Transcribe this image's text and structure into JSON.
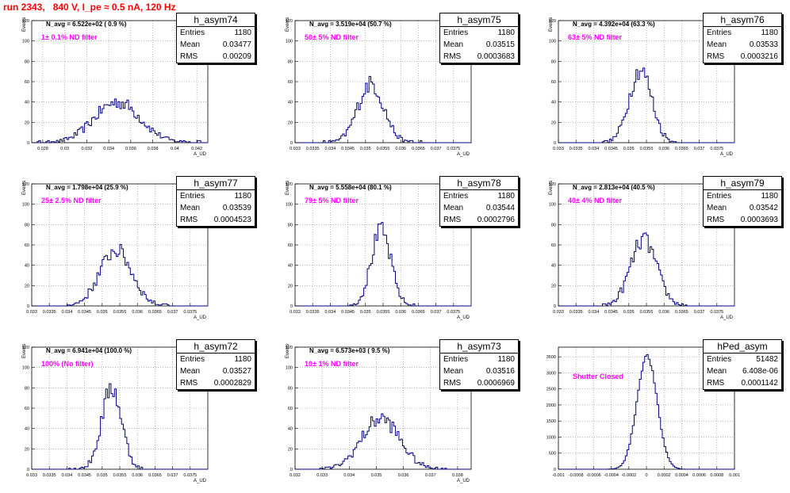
{
  "run_title": "run 2343,   840 V, I_pe ≈ 0.5 nA, 120 Hz",
  "colors": {
    "histogram": "#000080",
    "title": "#ff0000",
    "filter_text": "#ff00ff"
  },
  "stats_labels": {
    "entries": "Entries",
    "mean": "Mean",
    "rms": "RMS"
  },
  "chart_data": [
    {
      "type": "bar",
      "name": "h_asym74",
      "navg": "N_avg = 6.522e+02 ( 0.9 %)",
      "filter": "1± 0.1% ND filter",
      "entries": "1180",
      "mean": "0.03477",
      "rms": "0.00209",
      "xlabel": "A_UD",
      "ylabel": "Events",
      "xlim": [
        0.027,
        0.043
      ],
      "ylim": [
        0,
        120
      ],
      "xticks": [
        "0.028",
        "0.03",
        "0.032",
        "0.034",
        "0.036",
        "0.038",
        "0.04",
        "0.042"
      ],
      "xtick_values": [
        0.028,
        0.03,
        0.032,
        0.034,
        0.036,
        0.038,
        0.04,
        0.042
      ],
      "yticks": [
        0,
        20,
        40,
        60,
        80,
        100,
        120
      ],
      "dist": {
        "mean": 0.03477,
        "sigma": 0.00209,
        "peak": 40
      }
    },
    {
      "type": "bar",
      "name": "h_asym75",
      "navg": "N_avg = 3.519e+04 (50.7 %)",
      "filter": "50± 5% ND filter",
      "entries": "1180",
      "mean": "0.03515",
      "rms": "0.0003683",
      "xlabel": "A_UD",
      "ylabel": "Events",
      "xlim": [
        0.033,
        0.038
      ],
      "ylim": [
        0,
        120
      ],
      "xticks": [
        "0.033",
        "0.0335",
        "0.034",
        "0.0345",
        "0.035",
        "0.0355",
        "0.036",
        "0.0365",
        "0.037",
        "0.0375"
      ],
      "xtick_values": [
        0.033,
        0.0335,
        0.034,
        0.0345,
        0.035,
        0.0355,
        0.036,
        0.0365,
        0.037,
        0.0375
      ],
      "yticks": [
        0,
        20,
        40,
        60,
        80,
        100,
        120
      ],
      "dist": {
        "mean": 0.03515,
        "sigma": 0.0003683,
        "peak": 58
      }
    },
    {
      "type": "bar",
      "name": "h_asym76",
      "navg": "N_avg = 4.392e+04 (63.3 %)",
      "filter": "63± 5% ND filter",
      "entries": "1180",
      "mean": "0.03533",
      "rms": "0.0003216",
      "xlabel": "A_UD",
      "ylabel": "Events",
      "xlim": [
        0.033,
        0.038
      ],
      "ylim": [
        0,
        120
      ],
      "xticks": [
        "0.033",
        "0.0335",
        "0.034",
        "0.0345",
        "0.035",
        "0.0355",
        "0.036",
        "0.0365",
        "0.037",
        "0.0375"
      ],
      "xtick_values": [
        0.033,
        0.0335,
        0.034,
        0.0345,
        0.035,
        0.0355,
        0.036,
        0.0365,
        0.037,
        0.0375
      ],
      "yticks": [
        0,
        20,
        40,
        60,
        80,
        100,
        120
      ],
      "dist": {
        "mean": 0.03533,
        "sigma": 0.0003216,
        "peak": 72
      }
    },
    {
      "type": "bar",
      "name": "h_asym77",
      "navg": "N_avg = 1.798e+04 (25.9 %)",
      "filter": "25± 2.5% ND filter",
      "entries": "1180",
      "mean": "0.03539",
      "rms": "0.0004523",
      "xlabel": "A_UD",
      "ylabel": "Events",
      "xlim": [
        0.033,
        0.038
      ],
      "ylim": [
        0,
        120
      ],
      "xticks": [
        "0.033",
        "0.0335",
        "0.034",
        "0.0345",
        "0.035",
        "0.0355",
        "0.036",
        "0.0365",
        "0.037",
        "0.0375"
      ],
      "xtick_values": [
        0.033,
        0.0335,
        0.034,
        0.0345,
        0.035,
        0.0355,
        0.036,
        0.0365,
        0.037,
        0.0375
      ],
      "yticks": [
        0,
        20,
        40,
        60,
        80,
        100,
        120
      ],
      "dist": {
        "mean": 0.03539,
        "sigma": 0.0004523,
        "peak": 55
      }
    },
    {
      "type": "bar",
      "name": "h_asym78",
      "navg": "N_avg = 5.558e+04 (80.1 %)",
      "filter": "79± 5% ND filter",
      "entries": "1180",
      "mean": "0.03544",
      "rms": "0.0002796",
      "xlabel": "A_UD",
      "ylabel": "Events",
      "xlim": [
        0.033,
        0.038
      ],
      "ylim": [
        0,
        120
      ],
      "xticks": [
        "0.033",
        "0.0335",
        "0.034",
        "0.0345",
        "0.035",
        "0.0355",
        "0.036",
        "0.0365",
        "0.037",
        "0.0375"
      ],
      "xtick_values": [
        0.033,
        0.0335,
        0.034,
        0.0345,
        0.035,
        0.0355,
        0.036,
        0.0365,
        0.037,
        0.0375
      ],
      "yticks": [
        0,
        20,
        40,
        60,
        80,
        100,
        120
      ],
      "dist": {
        "mean": 0.03544,
        "sigma": 0.0002796,
        "peak": 74
      }
    },
    {
      "type": "bar",
      "name": "h_asym79",
      "navg": "N_avg = 2.813e+04 (40.5 %)",
      "filter": "40± 4% ND filter",
      "entries": "1180",
      "mean": "0.03542",
      "rms": "0.0003693",
      "xlabel": "A_UD",
      "ylabel": "Events",
      "xlim": [
        0.033,
        0.038
      ],
      "ylim": [
        0,
        120
      ],
      "xticks": [
        "0.033",
        "0.0335",
        "0.034",
        "0.0345",
        "0.035",
        "0.0355",
        "0.036",
        "0.0365",
        "0.037",
        "0.0375"
      ],
      "xtick_values": [
        0.033,
        0.0335,
        0.034,
        0.0345,
        0.035,
        0.0355,
        0.036,
        0.0365,
        0.037,
        0.0375
      ],
      "yticks": [
        0,
        20,
        40,
        60,
        80,
        100,
        120
      ],
      "dist": {
        "mean": 0.03542,
        "sigma": 0.0003693,
        "peak": 65
      }
    },
    {
      "type": "bar",
      "name": "h_asym72",
      "navg": "N_avg = 6.941e+04 (100.0 %)",
      "filter": "100% (No filter)",
      "entries": "1180",
      "mean": "0.03527",
      "rms": "0.0002829",
      "xlabel": "A_UD",
      "ylabel": "Events",
      "xlim": [
        0.033,
        0.038
      ],
      "ylim": [
        0,
        120
      ],
      "xticks": [
        "0.033",
        "0.0335",
        "0.034",
        "0.0345",
        "0.035",
        "0.0355",
        "0.036",
        "0.0365",
        "0.037",
        "0.0375"
      ],
      "xtick_values": [
        0.033,
        0.0335,
        0.034,
        0.0345,
        0.035,
        0.0355,
        0.036,
        0.0365,
        0.037,
        0.0375
      ],
      "yticks": [
        0,
        20,
        40,
        60,
        80,
        100,
        120
      ],
      "dist": {
        "mean": 0.03527,
        "sigma": 0.0002829,
        "peak": 80
      }
    },
    {
      "type": "bar",
      "name": "h_asym73",
      "navg": "N_avg = 6.573e+03 ( 9.5 %)",
      "filter": "10± 1% ND filter",
      "entries": "1180",
      "mean": "0.03516",
      "rms": "0.0006969",
      "xlabel": "A_UD",
      "ylabel": "Events",
      "xlim": [
        0.032,
        0.0385
      ],
      "ylim": [
        0,
        120
      ],
      "xticks": [
        "0.032",
        "0.033",
        "0.034",
        "0.035",
        "0.036",
        "0.037",
        "0.038"
      ],
      "xtick_values": [
        0.032,
        0.033,
        0.034,
        0.035,
        0.036,
        0.037,
        0.038
      ],
      "yticks": [
        0,
        20,
        40,
        60,
        80,
        100,
        120
      ],
      "dist": {
        "mean": 0.03516,
        "sigma": 0.0006969,
        "peak": 50
      }
    },
    {
      "type": "bar",
      "name": "hPed_asym",
      "navg": "",
      "filter": "Shutter Closed",
      "entries": "51482",
      "mean": "6.408e-06",
      "rms": "0.0001142",
      "xlabel": "",
      "ylabel": "",
      "xlim": [
        -0.001,
        0.001
      ],
      "ylim": [
        0,
        3800
      ],
      "xticks": [
        "-0.001",
        "-0.0008",
        "-0.0006",
        "-0.0004",
        "-0.0002",
        "0",
        "0.0002",
        "0.0004",
        "0.0006",
        "0.0008",
        "0.001"
      ],
      "xtick_values": [
        -0.001,
        -0.0008,
        -0.0006,
        -0.0004,
        -0.0002,
        0,
        0.0002,
        0.0004,
        0.0006,
        0.0008,
        0.001
      ],
      "yticks": [
        0,
        500,
        1000,
        1500,
        2000,
        2500,
        3000,
        3500
      ],
      "dist": {
        "mean": 6.408e-06,
        "sigma": 0.0001142,
        "peak": 3520
      }
    }
  ]
}
